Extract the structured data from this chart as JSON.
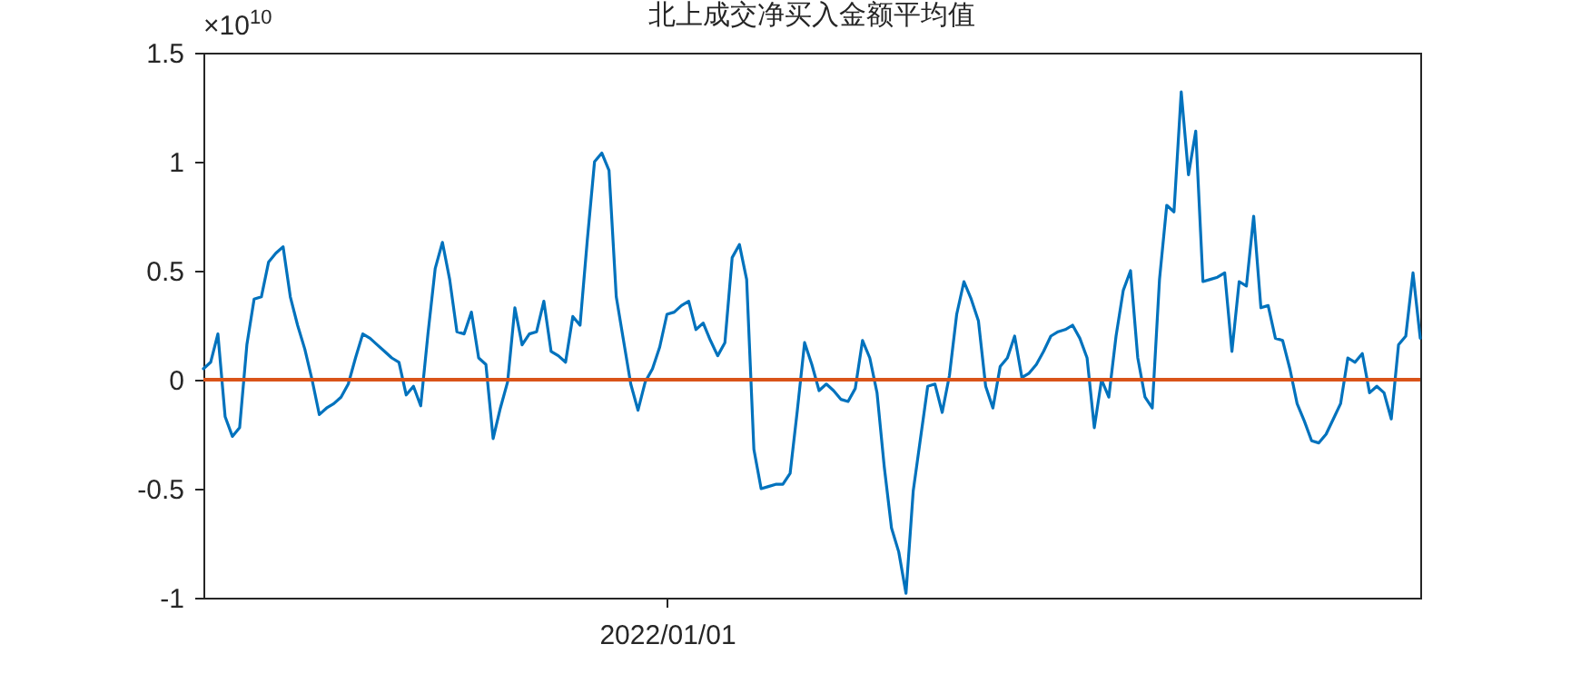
{
  "chart_data": {
    "type": "line",
    "title": "北上成交净买入金额平均值",
    "annotations": [
      "×10$^{10}$"
    ],
    "categories": [
      null,
      null,
      null,
      null,
      null,
      null,
      null,
      null,
      null,
      null,
      null,
      null,
      null,
      null,
      null,
      null,
      null,
      null,
      null,
      null,
      null,
      null,
      null,
      null,
      null,
      null,
      null,
      null,
      null,
      null,
      null,
      null,
      null,
      null,
      null,
      null,
      null,
      null,
      null,
      null,
      null,
      null,
      null,
      null,
      null,
      null,
      null,
      null,
      null,
      null,
      null,
      null,
      null,
      null,
      null,
      null,
      null,
      null,
      null,
      null,
      null,
      null,
      null,
      null,
      "2022/01/01",
      null,
      null,
      null,
      null,
      null,
      null,
      null,
      null,
      null,
      null,
      null,
      null,
      null,
      null,
      null,
      null,
      null,
      null,
      null,
      null,
      null,
      null,
      null,
      null,
      null,
      null,
      null,
      null,
      null,
      null,
      null,
      null,
      null,
      null,
      null,
      null,
      null,
      null,
      null,
      null,
      null,
      null,
      null,
      null,
      null,
      null,
      null,
      null,
      null,
      null,
      null,
      null,
      null,
      null,
      null,
      null,
      null,
      null,
      null,
      null,
      null,
      null,
      null,
      null,
      null,
      null,
      null,
      null,
      null,
      null,
      null,
      null,
      null,
      null,
      null,
      null,
      null,
      null,
      null,
      null,
      null,
      null,
      null,
      null,
      null,
      null,
      null,
      null,
      null,
      null,
      null,
      null,
      null,
      null,
      null,
      null,
      null,
      null,
      null,
      null,
      null,
      null,
      null,
      null
    ],
    "values": [
      0.05,
      0.08,
      0.21,
      -0.17,
      -0.26,
      -0.22,
      0.16,
      0.37,
      0.38,
      0.54,
      0.58,
      0.61,
      0.38,
      0.25,
      0.14,
      0.0,
      -0.16,
      -0.13,
      -0.11,
      -0.08,
      -0.02,
      0.1,
      0.21,
      0.19,
      0.16,
      0.13,
      0.1,
      0.08,
      -0.07,
      -0.03,
      -0.12,
      0.21,
      0.51,
      0.63,
      0.46,
      0.22,
      0.21,
      0.31,
      0.1,
      0.07,
      -0.27,
      -0.13,
      -0.01,
      0.33,
      0.16,
      0.21,
      0.22,
      0.36,
      0.13,
      0.11,
      0.08,
      0.29,
      0.25,
      0.64,
      1.0,
      1.04,
      0.96,
      0.38,
      0.18,
      -0.02,
      -0.14,
      -0.01,
      0.05,
      0.15,
      0.3,
      0.31,
      0.34,
      0.36,
      0.23,
      0.26,
      0.18,
      0.11,
      0.17,
      0.56,
      0.62,
      0.46,
      -0.32,
      -0.5,
      -0.49,
      -0.48,
      -0.48,
      -0.43,
      -0.14,
      0.17,
      0.07,
      -0.05,
      -0.02,
      -0.05,
      -0.09,
      -0.1,
      -0.04,
      0.18,
      0.1,
      -0.06,
      -0.4,
      -0.68,
      -0.79,
      -0.98,
      -0.51,
      -0.27,
      -0.03,
      -0.02,
      -0.15,
      0.02,
      0.3,
      0.45,
      0.37,
      0.27,
      -0.03,
      -0.13,
      0.06,
      0.1,
      0.2,
      0.01,
      0.03,
      0.07,
      0.13,
      0.2,
      0.22,
      0.23,
      0.25,
      0.19,
      0.1,
      -0.22,
      0.0,
      -0.08,
      0.2,
      0.41,
      0.5,
      0.1,
      -0.08,
      -0.13,
      0.46,
      0.8,
      0.77,
      1.32,
      0.94,
      1.14,
      0.45,
      0.46,
      0.47,
      0.49,
      0.13,
      0.45,
      0.43,
      0.75,
      0.33,
      0.34,
      0.19,
      0.18,
      0.05,
      -0.11,
      -0.19,
      -0.28,
      -0.29,
      -0.25,
      -0.18,
      -0.11,
      0.1,
      0.08,
      0.12,
      -0.06,
      -0.03,
      -0.06,
      -0.18,
      0.16,
      0.2,
      0.49,
      0.19
    ],
    "color": "#0072bd",
    "ylim": [
      -1,
      1.5
    ],
    "yticks": [
      -1,
      -0.5,
      0,
      0.5,
      1,
      1.5
    ],
    "ref_lines": [
      {
        "axis": "y",
        "value": 0,
        "color": "#d95319"
      }
    ]
  }
}
